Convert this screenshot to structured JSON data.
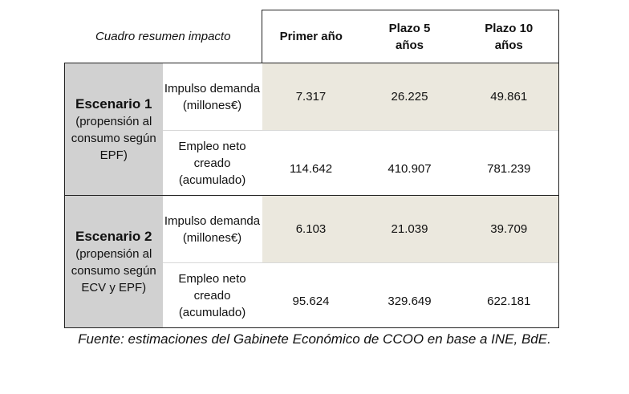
{
  "table": {
    "caption": "Cuadro resumen impacto",
    "columns": [
      "Primer año",
      "Plazo 5 años",
      "Plazo 10 años"
    ],
    "scenarios": [
      {
        "title": "Escenario 1",
        "description": "(propensión al consumo según EPF)",
        "rows": [
          {
            "metric": "Impulso demanda (millones€)",
            "values": [
              "7.317",
              "26.225",
              "49.861"
            ]
          },
          {
            "metric": "Empleo neto creado (acumulado)",
            "values": [
              "114.642",
              "410.907",
              "781.239"
            ]
          }
        ]
      },
      {
        "title": "Escenario 2",
        "description": "(propensión al consumo según ECV y EPF)",
        "rows": [
          {
            "metric": "Impulso demanda (millones€)",
            "values": [
              "6.103",
              "21.039",
              "39.709"
            ]
          },
          {
            "metric": "Empleo neto creado (acumulado)",
            "values": [
              "95.624",
              "329.649",
              "622.181"
            ]
          }
        ]
      }
    ]
  },
  "source": "Fuente: estimaciones del Gabinete Económico de CCOO en base a INE, BdE."
}
